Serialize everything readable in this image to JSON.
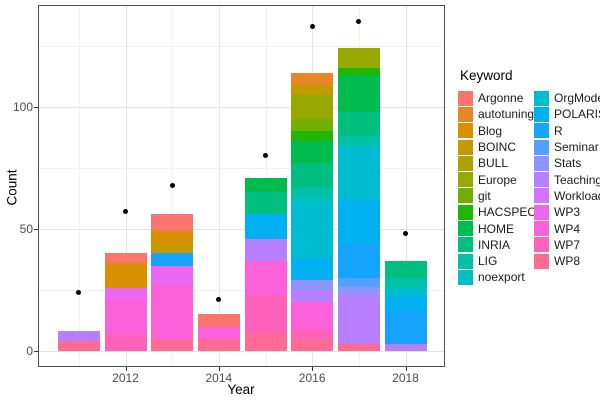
{
  "figure": {
    "background": "#ffffff",
    "panel_border_color": "#4d4d4d",
    "grid_major_color": "#e3e3e3",
    "grid_minor_color": "#f2f2f2",
    "tick_label_color": "#4d4d4d",
    "point_color": "#000000"
  },
  "chart_data": {
    "type": "bar",
    "stacked": true,
    "title": "",
    "xlabel": "Year",
    "ylabel": "Count",
    "legend_title": "Keyword",
    "legend_position": "right",
    "x_ticks": [
      2012,
      2014,
      2016,
      2018
    ],
    "x_minor_ticks": [
      2011,
      2013,
      2015,
      2017
    ],
    "y_ticks": [
      0,
      50,
      100
    ],
    "y_minor_ticks": [
      25,
      75,
      125
    ],
    "ylim": [
      0,
      141
    ],
    "grid": true,
    "keywords": [
      "Argonne",
      "autotuning",
      "Blog",
      "BOINC",
      "BULL",
      "Europe",
      "git",
      "HACSPECIS",
      "HOME",
      "INRIA",
      "LIG",
      "noexport",
      "OrgMode",
      "POLARIS",
      "R",
      "Seminar",
      "Stats",
      "Teaching",
      "Workload",
      "WP3",
      "WP4",
      "WP7",
      "WP8"
    ],
    "palette": {
      "Argonne": "#F8766D",
      "autotuning": "#E88526",
      "Blog": "#D89000",
      "BOINC": "#C39B00",
      "BULL": "#AFA100",
      "Europe": "#97A900",
      "git": "#6FB000",
      "HACSPECIS": "#1FB702",
      "HOME": "#00BB4E",
      "INRIA": "#00BF7F",
      "LIG": "#00C1A7",
      "noexport": "#00C0C4",
      "OrgMode": "#00BCD1",
      "POLARIS": "#00B0F1",
      "R": "#14A3FF",
      "Seminar": "#559FFF",
      "Stats": "#8F93FF",
      "Teaching": "#B77FFF",
      "Workload": "#D473FF",
      "WP3": "#EC67EF",
      "WP4": "#FB61D9",
      "WP7": "#FF62BB",
      "WP8": "#FF6B95"
    },
    "bars": [
      {
        "year": 2011,
        "total": 8,
        "segments_bottom_to_top": [
          {
            "keyword": "WP8",
            "value": 4
          },
          {
            "keyword": "Teaching",
            "value": 4
          }
        ]
      },
      {
        "year": 2012,
        "total": 40,
        "segments_bottom_to_top": [
          {
            "keyword": "WP7",
            "value": 7
          },
          {
            "keyword": "WP4",
            "value": 14
          },
          {
            "keyword": "WP3",
            "value": 5
          },
          {
            "keyword": "Blog",
            "value": 10
          },
          {
            "keyword": "Argonne",
            "value": 4
          }
        ]
      },
      {
        "year": 2013,
        "total": 56,
        "segments_bottom_to_top": [
          {
            "keyword": "WP8",
            "value": 5
          },
          {
            "keyword": "WP4",
            "value": 22
          },
          {
            "keyword": "WP3",
            "value": 8
          },
          {
            "keyword": "R",
            "value": 5
          },
          {
            "keyword": "BOINC",
            "value": 4
          },
          {
            "keyword": "Blog",
            "value": 5
          },
          {
            "keyword": "Argonne",
            "value": 7
          }
        ]
      },
      {
        "year": 2014,
        "total": 15,
        "segments_bottom_to_top": [
          {
            "keyword": "WP8",
            "value": 5
          },
          {
            "keyword": "WP4",
            "value": 5
          },
          {
            "keyword": "Argonne",
            "value": 5
          }
        ]
      },
      {
        "year": 2015,
        "total": 71,
        "segments_bottom_to_top": [
          {
            "keyword": "WP8",
            "value": 7
          },
          {
            "keyword": "WP7",
            "value": 16
          },
          {
            "keyword": "WP4",
            "value": 14
          },
          {
            "keyword": "Teaching",
            "value": 9
          },
          {
            "keyword": "POLARIS",
            "value": 10
          },
          {
            "keyword": "INRIA",
            "value": 9
          },
          {
            "keyword": "HOME",
            "value": 6
          }
        ]
      },
      {
        "year": 2016,
        "total": 114,
        "segments_bottom_to_top": [
          {
            "keyword": "WP8",
            "value": 5
          },
          {
            "keyword": "WP7",
            "value": 4
          },
          {
            "keyword": "WP4",
            "value": 11
          },
          {
            "keyword": "Teaching",
            "value": 5
          },
          {
            "keyword": "Stats",
            "value": 4
          },
          {
            "keyword": "POLARIS",
            "value": 9
          },
          {
            "keyword": "OrgMode",
            "value": 22
          },
          {
            "keyword": "noexport",
            "value": 3
          },
          {
            "keyword": "LIG",
            "value": 4
          },
          {
            "keyword": "INRIA",
            "value": 10
          },
          {
            "keyword": "HOME",
            "value": 9
          },
          {
            "keyword": "HACSPECIS",
            "value": 4
          },
          {
            "keyword": "git",
            "value": 5
          },
          {
            "keyword": "Europe",
            "value": 10
          },
          {
            "keyword": "BOINC",
            "value": 4
          },
          {
            "keyword": "autotuning",
            "value": 5
          }
        ]
      },
      {
        "year": 2017,
        "total": 124,
        "segments_bottom_to_top": [
          {
            "keyword": "WP8",
            "value": 3
          },
          {
            "keyword": "Teaching",
            "value": 20
          },
          {
            "keyword": "Stats",
            "value": 3
          },
          {
            "keyword": "Seminar",
            "value": 4
          },
          {
            "keyword": "R",
            "value": 14
          },
          {
            "keyword": "POLARIS",
            "value": 18
          },
          {
            "keyword": "OrgMode",
            "value": 22
          },
          {
            "keyword": "LIG",
            "value": 4
          },
          {
            "keyword": "INRIA",
            "value": 10
          },
          {
            "keyword": "HOME",
            "value": 15
          },
          {
            "keyword": "HACSPECIS",
            "value": 3
          },
          {
            "keyword": "Europe",
            "value": 8
          }
        ]
      },
      {
        "year": 2018,
        "total": 37,
        "segments_bottom_to_top": [
          {
            "keyword": "Teaching",
            "value": 3
          },
          {
            "keyword": "R",
            "value": 13
          },
          {
            "keyword": "POLARIS",
            "value": 6
          },
          {
            "keyword": "OrgMode",
            "value": 4
          },
          {
            "keyword": "LIG",
            "value": 4
          },
          {
            "keyword": "INRIA",
            "value": 7
          }
        ]
      }
    ],
    "points": {
      "name": "yearly-count-dots",
      "values": [
        {
          "year": 2011,
          "value": 24
        },
        {
          "year": 2012,
          "value": 57
        },
        {
          "year": 2013,
          "value": 68
        },
        {
          "year": 2014,
          "value": 21
        },
        {
          "year": 2015,
          "value": 80
        },
        {
          "year": 2016,
          "value": 133
        },
        {
          "year": 2017,
          "value": 135
        },
        {
          "year": 2018,
          "value": 48
        }
      ]
    }
  }
}
